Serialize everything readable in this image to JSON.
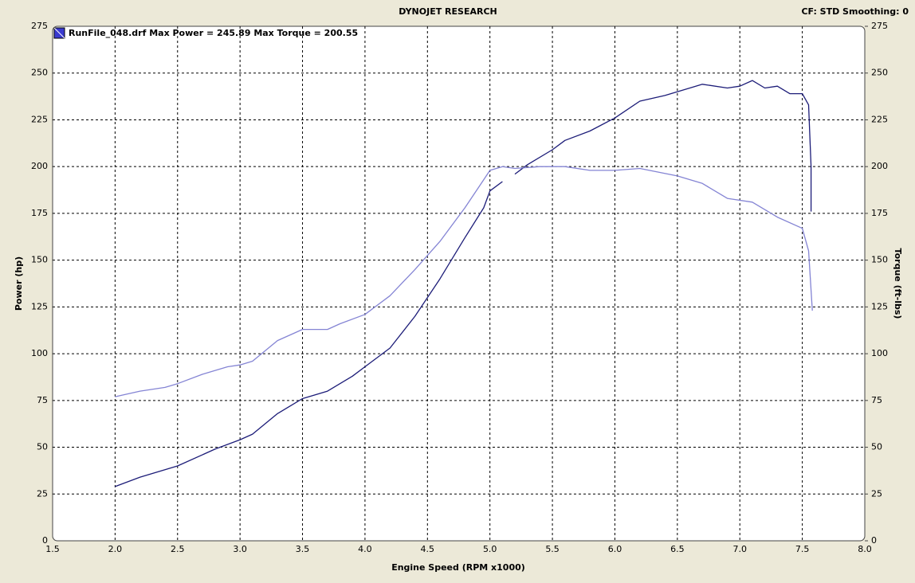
{
  "chart_data": {
    "type": "line",
    "title": "DYNOJET RESEARCH",
    "status": "CF: STD  Smoothing: 0",
    "legend": "RunFile_048.drf Max Power = 245.89 Max Torque = 200.55",
    "x_label": "Engine Speed (RPM x1000)",
    "y_label": "Power (hp)",
    "y2_label": "Torque (ft-lbs)",
    "xlim": [
      1.5,
      8.0
    ],
    "xticks": [
      1.5,
      {
        "value": 2,
        "label": "2.0"
      },
      2.5,
      {
        "value": 3,
        "label": "3.0"
      },
      3.5,
      {
        "value": 4,
        "label": "4.0"
      },
      4.5,
      {
        "value": 5,
        "label": "5.0"
      },
      5.5,
      {
        "value": 6,
        "label": "6.0"
      },
      6.5,
      {
        "value": 7,
        "label": "7.0"
      },
      7.5,
      {
        "value": 8,
        "label": "8.0"
      }
    ],
    "ylim": [
      0,
      275
    ],
    "yticks": [
      0,
      25,
      50,
      75,
      100,
      125,
      150,
      175,
      200,
      225,
      250,
      275
    ],
    "y2lim": [
      0,
      275
    ],
    "y2ticks": [
      0,
      25,
      50,
      75,
      100,
      125,
      150,
      175,
      200,
      225,
      250,
      275
    ],
    "grid": true,
    "series": [
      {
        "color": "#1c1c78",
        "x": [
          2.0,
          2.2,
          2.5,
          2.8,
          3.0,
          3.1,
          3.3,
          3.5,
          3.7,
          3.9,
          4.0,
          4.2,
          4.4,
          4.6,
          4.8,
          4.95,
          5.0,
          5.1,
          5.15,
          5.2,
          5.3,
          5.5,
          5.6,
          5.8,
          6.0,
          6.2,
          6.4,
          6.6,
          6.7,
          6.9,
          7.0,
          7.1,
          7.2,
          7.3,
          7.4,
          7.5,
          7.55,
          7.57,
          7.57
        ],
        "values": [
          29,
          34,
          40,
          49,
          54,
          57,
          68,
          76,
          80,
          88,
          93,
          103,
          120,
          140,
          162,
          178,
          187,
          192,
          null,
          196,
          201,
          209,
          214,
          219,
          226,
          235,
          238,
          242,
          244,
          242,
          243,
          246,
          242,
          243,
          239,
          239,
          233,
          200,
          176
        ]
      },
      {
        "color": "#8484d4",
        "axis": "y2",
        "x": [
          2.0,
          2.2,
          2.4,
          2.5,
          2.7,
          2.9,
          3.0,
          3.1,
          3.3,
          3.5,
          3.7,
          3.8,
          4.0,
          4.2,
          4.4,
          4.6,
          4.8,
          4.95,
          5.0,
          5.1,
          5.2,
          5.4,
          5.6,
          5.8,
          6.0,
          6.2,
          6.5,
          6.7,
          6.9,
          7.1,
          7.3,
          7.5,
          7.55,
          7.58
        ],
        "values": [
          77,
          80,
          82,
          84,
          89,
          93,
          94,
          96,
          107,
          113,
          113,
          116,
          121,
          131,
          145,
          160,
          178,
          193,
          198,
          200,
          199,
          200,
          200,
          198,
          198,
          199,
          195,
          191,
          183,
          181,
          173,
          167,
          155,
          123
        ]
      }
    ]
  }
}
